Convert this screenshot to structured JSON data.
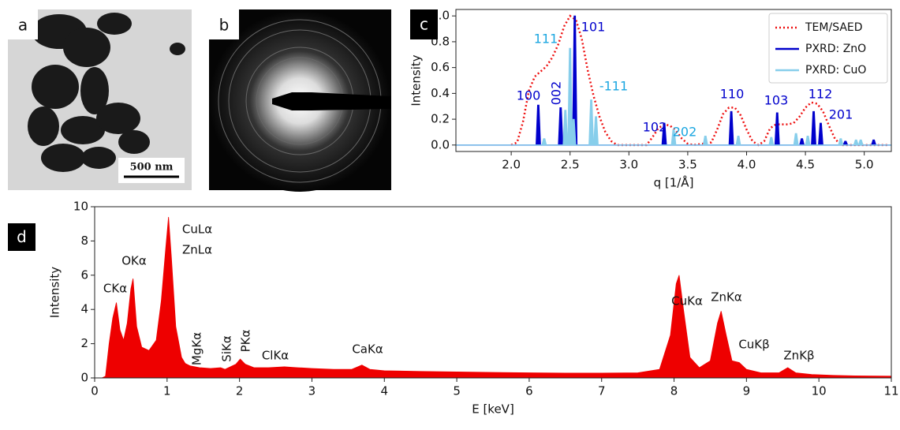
{
  "panels": {
    "a": {
      "label": "a",
      "scale_bar": "500 nm"
    },
    "b": {
      "label": "b"
    }
  },
  "chart_data": [
    {
      "type": "line",
      "panel_label": "c",
      "x_label": "q [1/Å]",
      "y_label": "Intensity",
      "xlim": [
        1.53,
        5.23
      ],
      "ylim": [
        -0.05,
        1.05
      ],
      "xticks": [
        {
          "value": 2.0,
          "label": "2.0"
        },
        {
          "value": 2.5,
          "label": "2.5"
        },
        {
          "value": 3.0,
          "label": "3.0"
        },
        {
          "value": 3.5,
          "label": "3.5"
        },
        {
          "value": 4.0,
          "label": "4.0"
        },
        {
          "value": 4.5,
          "label": "4.5"
        },
        {
          "value": 5.0,
          "label": "5.0"
        }
      ],
      "yticks": [
        {
          "value": 0,
          "label": "0.0"
        },
        {
          "value": 0.2,
          "label": "0.2"
        },
        {
          "value": 0.4,
          "label": "0.4"
        },
        {
          "value": 0.6,
          "label": "0.6"
        },
        {
          "value": 0.8,
          "label": "0.8"
        },
        {
          "value": 1.0,
          "label": "1.0"
        }
      ],
      "legend": "upper right",
      "series": [
        {
          "name": "TEM/SAED",
          "color": "#ee1111",
          "style": "dotted",
          "x": [
            2.0,
            2.05,
            2.1,
            2.15,
            2.2,
            2.25,
            2.3,
            2.35,
            2.4,
            2.45,
            2.5,
            2.55,
            2.6,
            2.65,
            2.7,
            2.75,
            2.8,
            2.85,
            2.9,
            3.15,
            3.2,
            3.25,
            3.3,
            3.35,
            3.4,
            3.45,
            3.5,
            3.55,
            3.7,
            3.75,
            3.8,
            3.85,
            3.9,
            3.95,
            4.0,
            4.05,
            4.1,
            4.15,
            4.2,
            4.25,
            4.3,
            4.35,
            4.4,
            4.45,
            4.5,
            4.55,
            4.6,
            4.65,
            4.7,
            4.75,
            4.8,
            5.2
          ],
          "values": [
            0.0,
            0.02,
            0.18,
            0.42,
            0.53,
            0.57,
            0.61,
            0.68,
            0.78,
            0.92,
            1.0,
            0.97,
            0.82,
            0.58,
            0.38,
            0.22,
            0.1,
            0.03,
            0.0,
            0.0,
            0.06,
            0.13,
            0.16,
            0.15,
            0.11,
            0.05,
            0.01,
            0.0,
            0.02,
            0.12,
            0.24,
            0.29,
            0.29,
            0.23,
            0.12,
            0.03,
            0.0,
            0.03,
            0.13,
            0.16,
            0.16,
            0.16,
            0.17,
            0.22,
            0.29,
            0.33,
            0.32,
            0.26,
            0.15,
            0.05,
            0.0,
            0.0
          ]
        },
        {
          "name": "PXRD: ZnO",
          "color": "#0000cc",
          "style": "sticks",
          "x": [
            2.23,
            2.42,
            2.54,
            3.3,
            3.87,
            4.26,
            4.47,
            4.57,
            4.63,
            4.84,
            5.08
          ],
          "values": [
            0.31,
            0.29,
            1.0,
            0.17,
            0.26,
            0.25,
            0.05,
            0.26,
            0.17,
            0.03,
            0.04
          ]
        },
        {
          "name": "PXRD: CuO",
          "color": "#87ceeb",
          "style": "sticks",
          "x": [
            2.28,
            2.46,
            2.5,
            2.53,
            2.68,
            2.72,
            3.38,
            3.65,
            3.93,
            4.21,
            4.42,
            4.52,
            4.8,
            4.93,
            4.97
          ],
          "values": [
            0.05,
            0.27,
            0.75,
            0.2,
            0.35,
            0.22,
            0.12,
            0.07,
            0.07,
            0.06,
            0.09,
            0.07,
            0.05,
            0.04,
            0.04
          ]
        }
      ],
      "annotations": [
        {
          "text": "100",
          "color": "#0000cc"
        },
        {
          "text": "002",
          "color": "#0000cc"
        },
        {
          "text": "101",
          "color": "#0000cc"
        },
        {
          "text": "111",
          "color": "#1aa6e0"
        },
        {
          "text": "-111",
          "color": "#1aa6e0"
        },
        {
          "text": "102",
          "color": "#0000cc"
        },
        {
          "text": "202",
          "color": "#1aa6e0"
        },
        {
          "text": "110",
          "color": "#0000cc"
        },
        {
          "text": "103",
          "color": "#0000cc"
        },
        {
          "text": "112",
          "color": "#0000cc"
        },
        {
          "text": "201",
          "color": "#0000cc"
        }
      ]
    },
    {
      "type": "area",
      "panel_label": "d",
      "x_label": "E [keV]",
      "y_label": "Intensity",
      "color": "#ee0000",
      "xlim": [
        0,
        11
      ],
      "ylim": [
        0,
        10
      ],
      "xticks": [
        0,
        1,
        2,
        3,
        4,
        5,
        6,
        7,
        8,
        9,
        10,
        11
      ],
      "yticks": [
        0,
        2,
        4,
        6,
        8,
        10
      ],
      "x": [
        0.0,
        0.1,
        0.15,
        0.2,
        0.25,
        0.3,
        0.35,
        0.4,
        0.45,
        0.5,
        0.53,
        0.58,
        0.65,
        0.75,
        0.85,
        0.92,
        0.98,
        1.02,
        1.06,
        1.12,
        1.2,
        1.25,
        1.32,
        1.45,
        1.6,
        1.74,
        1.8,
        1.95,
        2.01,
        2.08,
        2.2,
        2.4,
        2.62,
        2.8,
        3.0,
        3.3,
        3.55,
        3.69,
        3.8,
        4.0,
        4.5,
        5.0,
        5.5,
        6.0,
        6.5,
        7.0,
        7.5,
        7.8,
        7.95,
        8.03,
        8.07,
        8.13,
        8.22,
        8.35,
        8.5,
        8.6,
        8.65,
        8.72,
        8.8,
        8.9,
        9.0,
        9.2,
        9.45,
        9.57,
        9.68,
        9.9,
        10.2,
        10.5,
        11.0
      ],
      "values": [
        0,
        0,
        0.1,
        2.0,
        3.5,
        4.4,
        2.8,
        2.2,
        3.2,
        5.2,
        5.8,
        3.0,
        1.8,
        1.6,
        2.2,
        4.5,
        7.5,
        9.4,
        7.0,
        3.0,
        1.2,
        0.85,
        0.7,
        0.6,
        0.55,
        0.6,
        0.5,
        0.8,
        1.1,
        0.8,
        0.6,
        0.6,
        0.65,
        0.6,
        0.55,
        0.5,
        0.5,
        0.75,
        0.5,
        0.42,
        0.38,
        0.35,
        0.32,
        0.3,
        0.28,
        0.28,
        0.3,
        0.5,
        2.5,
        5.5,
        6.0,
        4.0,
        1.2,
        0.6,
        1.0,
        3.2,
        3.9,
        2.5,
        1.0,
        0.9,
        0.5,
        0.3,
        0.3,
        0.6,
        0.3,
        0.2,
        0.15,
        0.12,
        0.1
      ],
      "annotations": [
        {
          "text": "CKα"
        },
        {
          "text": "OKα"
        },
        {
          "text": "CuLα"
        },
        {
          "text": "ZnLα"
        },
        {
          "text": "MgKα"
        },
        {
          "text": "SiKα"
        },
        {
          "text": "PKα"
        },
        {
          "text": "ClKα"
        },
        {
          "text": "CaKα"
        },
        {
          "text": "CuKα"
        },
        {
          "text": "ZnKα"
        },
        {
          "text": "CuKβ"
        },
        {
          "text": "ZnKβ"
        }
      ]
    }
  ]
}
